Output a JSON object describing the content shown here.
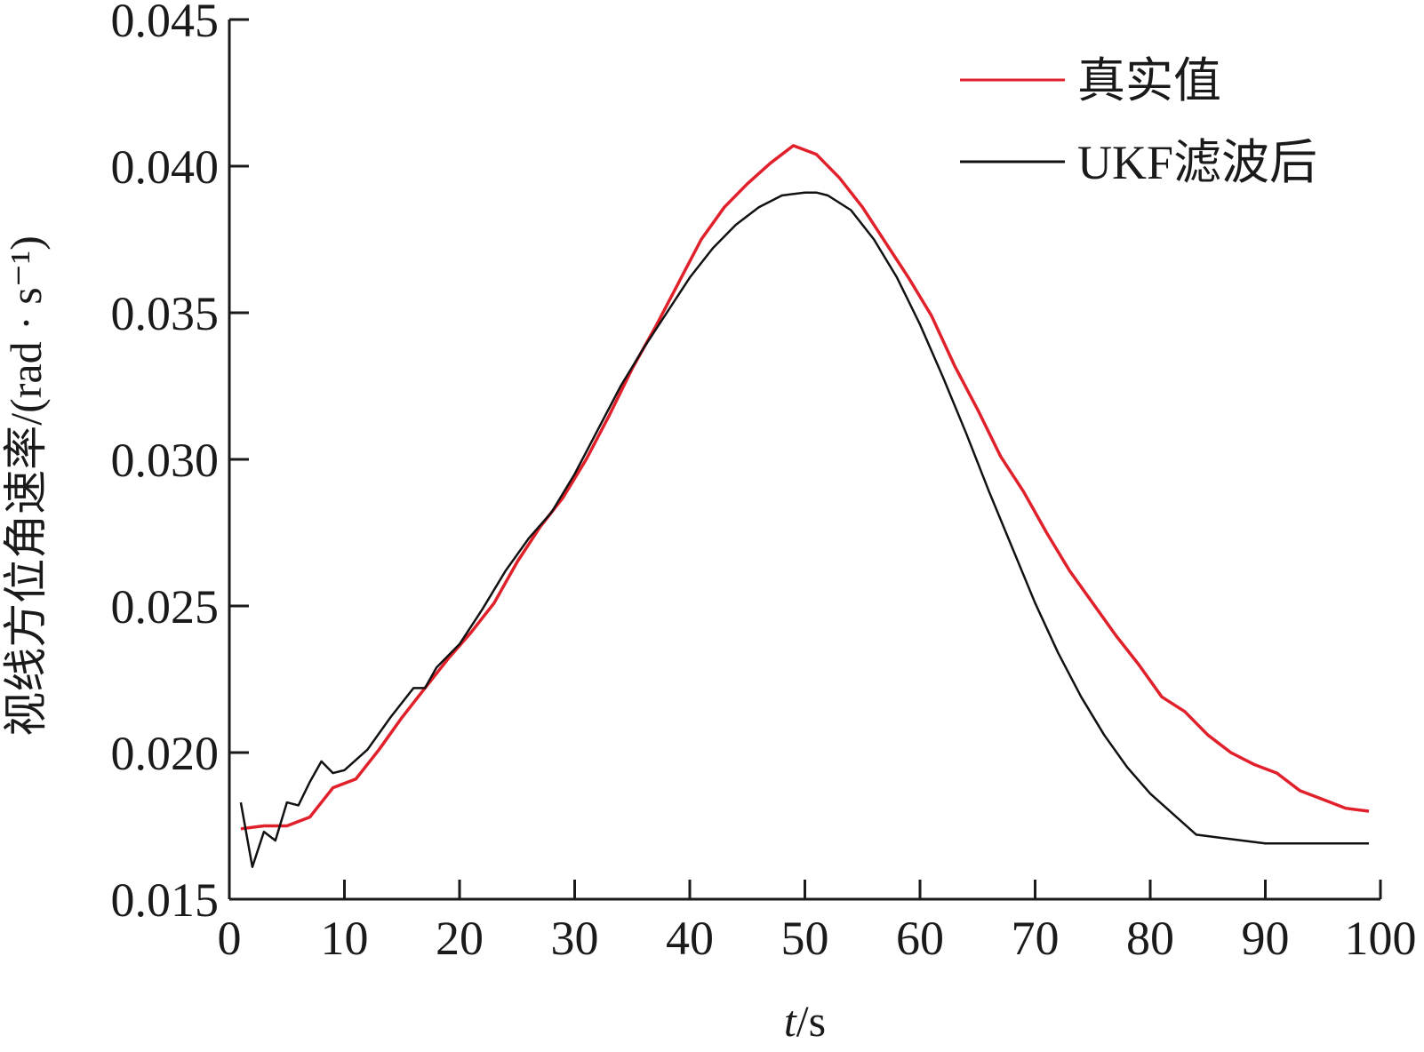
{
  "chart_data": {
    "type": "line",
    "title": "",
    "xlabel_italic": "t",
    "xlabel_rest": "/s",
    "ylabel": "视线方位角速率/(rad · s⁻¹)",
    "xlim": [
      0,
      100
    ],
    "ylim": [
      0.015,
      0.045
    ],
    "xticks": [
      0,
      10,
      20,
      30,
      40,
      50,
      60,
      70,
      80,
      90,
      100
    ],
    "xtick_labels": [
      "0",
      "10",
      "20",
      "30",
      "40",
      "50",
      "60",
      "70",
      "80",
      "90",
      "100"
    ],
    "yticks": [
      0.015,
      0.02,
      0.025,
      0.03,
      0.035,
      0.04,
      0.045
    ],
    "ytick_labels": [
      "0.015",
      "0.020",
      "0.025",
      "0.030",
      "0.035",
      "0.040",
      "0.045"
    ],
    "grid": false,
    "legend_position": "top-right",
    "series": [
      {
        "name": "真实值",
        "color": "#e0202a",
        "x": [
          1,
          3,
          5,
          7,
          9,
          11,
          13,
          15,
          17,
          19,
          21,
          23,
          25,
          27,
          29,
          31,
          33,
          35,
          37,
          39,
          41,
          43,
          45,
          47,
          49,
          51,
          53,
          55,
          57,
          59,
          61,
          63,
          65,
          67,
          69,
          71,
          73,
          75,
          77,
          79,
          81,
          83,
          85,
          87,
          89,
          91,
          93,
          95,
          97,
          99
        ],
        "y": [
          0.0174,
          0.0175,
          0.0175,
          0.0178,
          0.0188,
          0.0191,
          0.0201,
          0.0212,
          0.0222,
          0.0232,
          0.0241,
          0.0251,
          0.0265,
          0.0277,
          0.0287,
          0.03,
          0.0315,
          0.0331,
          0.0345,
          0.036,
          0.0375,
          0.0386,
          0.0394,
          0.0401,
          0.0407,
          0.0404,
          0.0396,
          0.0386,
          0.0374,
          0.0362,
          0.0349,
          0.0332,
          0.0317,
          0.0301,
          0.0289,
          0.0275,
          0.0262,
          0.0251,
          0.024,
          0.023,
          0.0219,
          0.0214,
          0.0206,
          0.02,
          0.0196,
          0.0193,
          0.0187,
          0.0184,
          0.0181,
          0.018
        ]
      },
      {
        "name": "UKF滤波后",
        "color": "#111111",
        "x": [
          1,
          2,
          3,
          4,
          5,
          6,
          7,
          8,
          9,
          10,
          12,
          14,
          16,
          17,
          18,
          20,
          22,
          24,
          26,
          28,
          30,
          32,
          34,
          36,
          38,
          40,
          42,
          44,
          46,
          48,
          50,
          51,
          52,
          54,
          56,
          58,
          60,
          62,
          64,
          66,
          68,
          70,
          72,
          74,
          76,
          78,
          80,
          82,
          84,
          86,
          88,
          90,
          92,
          94,
          96,
          98,
          99
        ],
        "y": [
          0.0183,
          0.0161,
          0.0173,
          0.017,
          0.0183,
          0.0182,
          0.019,
          0.0197,
          0.0193,
          0.0194,
          0.0201,
          0.0212,
          0.0222,
          0.0222,
          0.0229,
          0.0237,
          0.0249,
          0.0262,
          0.0273,
          0.0282,
          0.0295,
          0.031,
          0.0325,
          0.0338,
          0.035,
          0.0362,
          0.0372,
          0.038,
          0.0386,
          0.039,
          0.0391,
          0.0391,
          0.039,
          0.0385,
          0.0375,
          0.0362,
          0.0346,
          0.0328,
          0.0309,
          0.0289,
          0.027,
          0.0251,
          0.0234,
          0.0219,
          0.0206,
          0.0195,
          0.0186,
          0.0179,
          0.0172,
          0.0171,
          0.017,
          0.0169,
          0.0169,
          0.0169,
          0.0169,
          0.0169,
          0.0169
        ]
      }
    ]
  }
}
